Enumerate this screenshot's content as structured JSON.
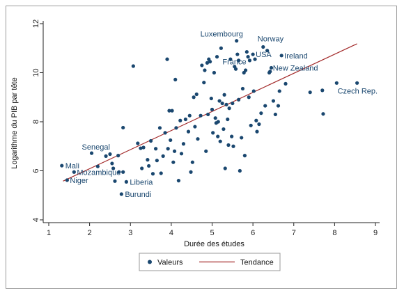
{
  "chart_data": {
    "type": "scatter",
    "xlabel": "Durée des études",
    "ylabel": "Logarithme du PIB par tête",
    "xlim": [
      1,
      9
    ],
    "ylim": [
      4,
      12
    ],
    "xticks": [
      1,
      2,
      3,
      4,
      5,
      6,
      7,
      8,
      9
    ],
    "yticks": [
      4,
      6,
      8,
      10,
      12
    ],
    "grid": "none",
    "legend_position": "bottom",
    "colors": {
      "points": "#1a476f",
      "trend": "#a32a2a"
    },
    "series": [
      {
        "name": "Valeurs",
        "kind": "scatter",
        "points": [
          [
            1.32,
            6.21
          ],
          [
            1.45,
            5.62
          ],
          [
            1.62,
            5.95
          ],
          [
            2.05,
            6.72
          ],
          [
            2.2,
            6.18
          ],
          [
            2.4,
            6.6
          ],
          [
            2.5,
            6.68
          ],
          [
            2.55,
            6.3
          ],
          [
            2.58,
            6.1
          ],
          [
            2.62,
            5.58
          ],
          [
            2.7,
            6.62
          ],
          [
            2.72,
            5.95
          ],
          [
            2.78,
            5.05
          ],
          [
            2.82,
            5.95
          ],
          [
            2.82,
            7.76
          ],
          [
            2.9,
            5.55
          ],
          [
            3.07,
            10.27
          ],
          [
            3.18,
            7.12
          ],
          [
            3.25,
            6.92
          ],
          [
            3.28,
            6.1
          ],
          [
            3.32,
            6.95
          ],
          [
            3.42,
            6.45
          ],
          [
            3.45,
            6.2
          ],
          [
            3.5,
            7.22
          ],
          [
            3.55,
            5.88
          ],
          [
            3.62,
            6.9
          ],
          [
            3.65,
            6.42
          ],
          [
            3.72,
            7.75
          ],
          [
            3.75,
            5.9
          ],
          [
            3.8,
            6.6
          ],
          [
            3.85,
            7.55
          ],
          [
            3.9,
            10.55
          ],
          [
            3.92,
            6.9
          ],
          [
            3.95,
            8.45
          ],
          [
            3.98,
            7.25
          ],
          [
            4.02,
            8.45
          ],
          [
            4.05,
            6.35
          ],
          [
            4.08,
            6.8
          ],
          [
            4.1,
            9.72
          ],
          [
            4.12,
            7.75
          ],
          [
            4.18,
            5.6
          ],
          [
            4.22,
            8.05
          ],
          [
            4.25,
            6.7
          ],
          [
            4.3,
            7.1
          ],
          [
            4.35,
            8.1
          ],
          [
            4.42,
            7.6
          ],
          [
            4.45,
            8.25
          ],
          [
            4.48,
            5.95
          ],
          [
            4.52,
            6.35
          ],
          [
            4.55,
            9.0
          ],
          [
            4.58,
            7.8
          ],
          [
            4.62,
            9.12
          ],
          [
            4.65,
            7.3
          ],
          [
            4.72,
            8.25
          ],
          [
            4.75,
            10.3
          ],
          [
            4.8,
            9.6
          ],
          [
            4.82,
            10.1
          ],
          [
            4.85,
            6.8
          ],
          [
            4.88,
            10.4
          ],
          [
            4.9,
            8.3
          ],
          [
            4.92,
            10.55
          ],
          [
            4.95,
            10.45
          ],
          [
            4.98,
            8.95
          ],
          [
            5.0,
            8.5
          ],
          [
            5.02,
            7.55
          ],
          [
            5.05,
            10.0
          ],
          [
            5.08,
            8.15
          ],
          [
            5.1,
            7.95
          ],
          [
            5.12,
            10.65
          ],
          [
            5.14,
            7.4
          ],
          [
            5.15,
            8.0
          ],
          [
            5.18,
            8.85
          ],
          [
            5.2,
            7.2
          ],
          [
            5.22,
            11.0
          ],
          [
            5.25,
            8.75
          ],
          [
            5.28,
            7.7
          ],
          [
            5.3,
            9.1
          ],
          [
            5.32,
            6.1
          ],
          [
            5.35,
            8.7
          ],
          [
            5.38,
            8.1
          ],
          [
            5.4,
            7.05
          ],
          [
            5.42,
            8.55
          ],
          [
            5.45,
            10.55
          ],
          [
            5.48,
            7.4
          ],
          [
            5.5,
            8.75
          ],
          [
            5.52,
            7.0
          ],
          [
            5.55,
            10.25
          ],
          [
            5.58,
            10.15
          ],
          [
            5.6,
            11.3
          ],
          [
            5.62,
            10.75
          ],
          [
            5.65,
            10.5
          ],
          [
            5.65,
            8.9
          ],
          [
            5.68,
            6.0
          ],
          [
            5.72,
            7.35
          ],
          [
            5.75,
            9.35
          ],
          [
            5.78,
            10.0
          ],
          [
            5.8,
            6.62
          ],
          [
            5.82,
            10.1
          ],
          [
            5.85,
            10.85
          ],
          [
            5.88,
            10.65
          ],
          [
            5.9,
            9.0
          ],
          [
            5.92,
            10.5
          ],
          [
            5.95,
            7.85
          ],
          [
            6.0,
            10.75
          ],
          [
            6.02,
            9.25
          ],
          [
            6.05,
            10.55
          ],
          [
            6.08,
            8.05
          ],
          [
            6.1,
            7.6
          ],
          [
            6.15,
            7.9
          ],
          [
            6.2,
            8.35
          ],
          [
            6.25,
            11.05
          ],
          [
            6.3,
            8.65
          ],
          [
            6.35,
            10.9
          ],
          [
            6.4,
            10.0
          ],
          [
            6.42,
            10.05
          ],
          [
            6.45,
            10.2
          ],
          [
            6.5,
            8.85
          ],
          [
            6.55,
            8.3
          ],
          [
            6.62,
            8.65
          ],
          [
            6.65,
            9.25
          ],
          [
            6.7,
            10.7
          ],
          [
            6.8,
            9.55
          ],
          [
            7.4,
            9.2
          ],
          [
            7.7,
            9.28
          ],
          [
            7.72,
            8.32
          ],
          [
            8.05,
            9.58
          ],
          [
            8.55,
            9.58
          ]
        ]
      },
      {
        "name": "Tendance",
        "kind": "line",
        "points": [
          [
            1.35,
            5.58
          ],
          [
            8.55,
            11.18
          ]
        ]
      }
    ],
    "annotations": [
      {
        "text": "Luxembourg",
        "x": 5.6,
        "y": 11.3
      },
      {
        "text": "Norway",
        "x": 6.25,
        "y": 11.05
      },
      {
        "text": "Ireland",
        "x": 6.7,
        "y": 10.7
      },
      {
        "text": "USA",
        "x": 6.0,
        "y": 10.75
      },
      {
        "text": "France",
        "x": 5.22,
        "y": 10.45
      },
      {
        "text": "New Zealand",
        "x": 6.42,
        "y": 10.2
      },
      {
        "text": "Czech Rep.",
        "x": 8.55,
        "y": 9.58
      },
      {
        "text": "Senegal",
        "x": 2.05,
        "y": 6.72
      },
      {
        "text": "Mali",
        "x": 1.32,
        "y": 6.21
      },
      {
        "text": "Mozambique",
        "x": 1.62,
        "y": 5.95
      },
      {
        "text": "Niger",
        "x": 1.45,
        "y": 5.62
      },
      {
        "text": "Liberia",
        "x": 2.9,
        "y": 5.55
      },
      {
        "text": "Burundi",
        "x": 2.78,
        "y": 5.05
      }
    ]
  }
}
